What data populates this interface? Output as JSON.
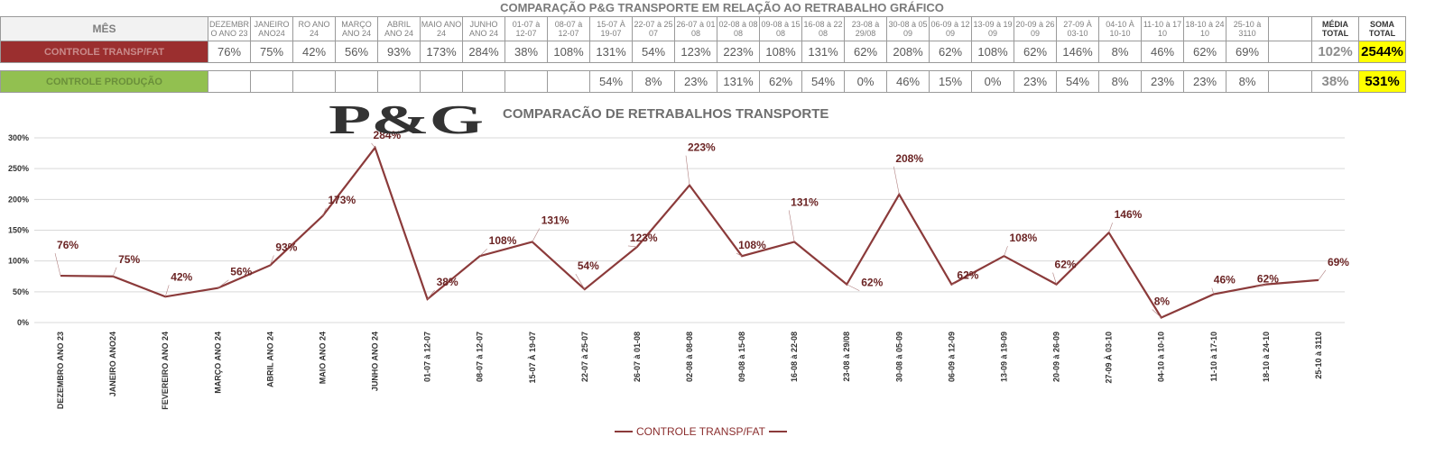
{
  "sheet_title": "COMPARAÇÃO P&G  TRANSPORTE EM RELAÇÃO AO RETRABALHO GRÁFICO",
  "table": {
    "header_label": "MÊS",
    "columns": [
      "DEZEMBR O ANO 23",
      "JANEIRO ANO24",
      "RO ANO 24",
      "MARÇO ANO 24",
      "ABRIL ANO 24",
      "MAIO ANO 24",
      "JUNHO ANO 24",
      "01-07 à 12-07",
      "08-07 à 12-07",
      "15-07 À 19-07",
      "22-07 à 25 07",
      "26-07 à 01 08",
      "02-08 à 08 08",
      "09-08 à 15 08",
      "16-08 à 22 08",
      "23-08 à 29/08",
      "30-08 à 05 09",
      "06-09 à 12 09",
      "13-09 à 19 09",
      "20-09 à 26 09",
      "27-09 À 03-10",
      "04-10 À 10-10",
      "11-10 à 17 10",
      "18-10 à 24 10",
      "25-10 à 3110",
      ""
    ],
    "avg_header": "MÉDIA TOTAL",
    "sum_header": "SOMA TOTAL",
    "row1": {
      "label": "CONTROLE TRANSP/FAT",
      "values": [
        "76%",
        "75%",
        "42%",
        "56%",
        "93%",
        "173%",
        "284%",
        "38%",
        "108%",
        "131%",
        "54%",
        "123%",
        "223%",
        "108%",
        "131%",
        "62%",
        "208%",
        "62%",
        "108%",
        "62%",
        "146%",
        "8%",
        "46%",
        "62%",
        "69%",
        ""
      ],
      "avg": "102%",
      "sum": "2544%"
    },
    "row2": {
      "label": "CONTROLE PRODUÇÃO",
      "values": [
        "",
        "",
        "",
        "",
        "",
        "",
        "",
        "",
        "",
        "54%",
        "8%",
        "23%",
        "131%",
        "62%",
        "54%",
        "0%",
        "46%",
        "15%",
        "0%",
        "23%",
        "54%",
        "8%",
        "23%",
        "23%",
        "8%",
        ""
      ],
      "avg": "38%",
      "sum": "531%"
    }
  },
  "logo_text": "P&G",
  "chart_data": {
    "type": "line",
    "title": "COMPARACÃO DE RETRABALHOS TRANSPORTE",
    "categories": [
      "DEZEMBRO ANO 23",
      "JANEIRO ANO24",
      "FEVEREIRO ANO 24",
      "MARÇO ANO 24",
      "ABRIL      ANO 24",
      "MAIO      ANO 24",
      "JUNHO     ANO 24",
      "01-07 à 12-07",
      "08-07 à 12-07",
      "15-07 À 19-07",
      "22-07 à 25-07",
      "26-07 à 01-08",
      "02-08 à 08-08",
      "09-08 à 15-08",
      "16-08 à 22-08",
      "23-08 à 29/08",
      "30-08 à 05-09",
      "06-09 à 12-09",
      "13-09 à 19-09",
      "20-09 à 26-09",
      "27-09 À 03-10",
      "04-10 à 10-10",
      "11-10 à 17-10",
      "18-10 à 24-10",
      "25-10 à 3110"
    ],
    "series": [
      {
        "name": "CONTROLE TRANSP/FAT",
        "values": [
          76,
          75,
          42,
          56,
          93,
          173,
          284,
          38,
          108,
          131,
          54,
          123,
          223,
          108,
          131,
          62,
          208,
          62,
          108,
          62,
          146,
          8,
          46,
          62,
          69
        ],
        "color": "#8b3a3a"
      }
    ],
    "data_labels": [
      "76%",
      "75%",
      "42%",
      "56%",
      "93%",
      "173%",
      "284%",
      "38%",
      "108%",
      "131%",
      "54%",
      "123%",
      "223%",
      "108%",
      "131%",
      "62%",
      "208%",
      "62%",
      "108%",
      "62%",
      "146%",
      "8%",
      "46%",
      "62%",
      "69%"
    ],
    "y_ticks": [
      0,
      50,
      100,
      150,
      200,
      250,
      300
    ],
    "y_tick_labels": [
      "0%",
      "50%",
      "100%",
      "150%",
      "200%",
      "250%",
      "300%"
    ],
    "ylim": [
      0,
      300
    ],
    "grid": true,
    "legend_position": "bottom"
  },
  "legend_label": "CONTROLE TRANSP/FAT"
}
